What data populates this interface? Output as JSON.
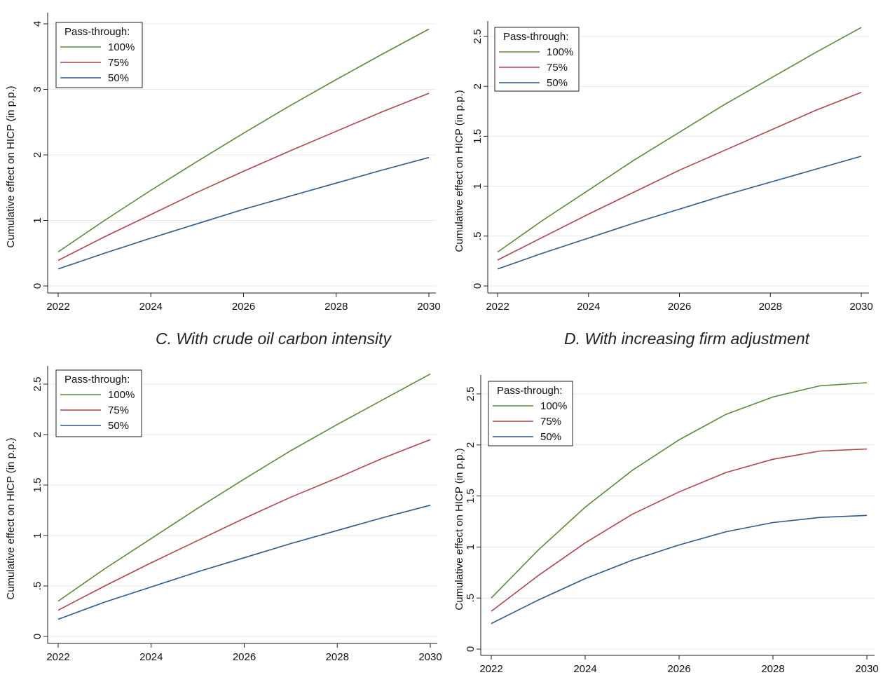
{
  "chart_data": [
    {
      "type": "line",
      "title": "",
      "xlabel": "",
      "ylabel": "Cumulative effect on HICP (in p.p.)",
      "xlim": [
        2022,
        2030
      ],
      "ylim": [
        0,
        4
      ],
      "xticks": [
        2022,
        2024,
        2026,
        2028,
        2030
      ],
      "xtick_labels": [
        "2022",
        "2024",
        "2026",
        "2028",
        "2030"
      ],
      "yticks": [
        0,
        1,
        2,
        3,
        4
      ],
      "ytick_labels": [
        "0",
        "1",
        "2",
        "3",
        "4"
      ],
      "grid": true,
      "legend_title": "Pass-through:",
      "legend_position": "top-left",
      "x": [
        2022,
        2023,
        2024,
        2025,
        2026,
        2027,
        2028,
        2029,
        2030
      ],
      "series": [
        {
          "name": "100%",
          "color": "#5b8a3c",
          "values": [
            0.52,
            1.0,
            1.46,
            1.9,
            2.33,
            2.75,
            3.15,
            3.54,
            3.92
          ]
        },
        {
          "name": "75%",
          "color": "#b0454e",
          "values": [
            0.39,
            0.75,
            1.09,
            1.43,
            1.75,
            2.06,
            2.36,
            2.66,
            2.94
          ]
        },
        {
          "name": "50%",
          "color": "#2c5a8a",
          "values": [
            0.26,
            0.5,
            0.73,
            0.95,
            1.17,
            1.37,
            1.57,
            1.77,
            1.96
          ]
        }
      ]
    },
    {
      "type": "line",
      "title": "",
      "xlabel": "",
      "ylabel": "Cumulative effect on HICP (in p.p.)",
      "xlim": [
        2022,
        2030
      ],
      "ylim": [
        0,
        2.5
      ],
      "xticks": [
        2022,
        2024,
        2026,
        2028,
        2030
      ],
      "xtick_labels": [
        "2022",
        "2024",
        "2026",
        "2028",
        "2030"
      ],
      "yticks": [
        0,
        0.5,
        1,
        1.5,
        2,
        2.5
      ],
      "ytick_labels": [
        "0",
        ".5",
        "1",
        "1.5",
        "2",
        "2.5"
      ],
      "grid": true,
      "legend_title": "Pass-through:",
      "legend_position": "top-left",
      "x": [
        2022,
        2023,
        2024,
        2025,
        2026,
        2027,
        2028,
        2029,
        2030
      ],
      "series": [
        {
          "name": "100%",
          "color": "#5b8a3c",
          "values": [
            0.34,
            0.66,
            0.96,
            1.26,
            1.54,
            1.82,
            2.08,
            2.34,
            2.59
          ]
        },
        {
          "name": "75%",
          "color": "#b0454e",
          "values": [
            0.26,
            0.49,
            0.72,
            0.94,
            1.16,
            1.36,
            1.56,
            1.76,
            1.94
          ]
        },
        {
          "name": "50%",
          "color": "#2c5a8a",
          "values": [
            0.17,
            0.33,
            0.48,
            0.63,
            0.77,
            0.91,
            1.04,
            1.17,
            1.3
          ]
        }
      ]
    },
    {
      "type": "line",
      "title": "C. With crude oil carbon intensity",
      "xlabel": "",
      "ylabel": "Cumulative effect on HICP (in p.p.)",
      "xlim": [
        2022,
        2030
      ],
      "ylim": [
        0,
        2.5
      ],
      "xticks": [
        2022,
        2024,
        2026,
        2028,
        2030
      ],
      "xtick_labels": [
        "2022",
        "2024",
        "2026",
        "2028",
        "2030"
      ],
      "yticks": [
        0,
        0.5,
        1,
        1.5,
        2,
        2.5
      ],
      "ytick_labels": [
        "0",
        ".5",
        "1",
        "1.5",
        "2",
        "2.5"
      ],
      "grid": true,
      "legend_title": "Pass-through:",
      "legend_position": "top-left",
      "x": [
        2022,
        2023,
        2024,
        2025,
        2026,
        2027,
        2028,
        2029,
        2030
      ],
      "series": [
        {
          "name": "100%",
          "color": "#5b8a3c",
          "values": [
            0.35,
            0.67,
            0.97,
            1.27,
            1.56,
            1.84,
            2.1,
            2.35,
            2.6
          ]
        },
        {
          "name": "75%",
          "color": "#b0454e",
          "values": [
            0.26,
            0.5,
            0.73,
            0.95,
            1.17,
            1.38,
            1.57,
            1.77,
            1.95
          ]
        },
        {
          "name": "50%",
          "color": "#2c5a8a",
          "values": [
            0.17,
            0.34,
            0.49,
            0.64,
            0.78,
            0.92,
            1.05,
            1.18,
            1.3
          ]
        }
      ]
    },
    {
      "type": "line",
      "title": "D. With increasing firm adjustment",
      "xlabel": "",
      "ylabel": "Cumulative effect on HICP (in p.p.)",
      "xlim": [
        2022,
        2030
      ],
      "ylim": [
        0,
        2.5
      ],
      "xticks": [
        2022,
        2024,
        2026,
        2028,
        2030
      ],
      "xtick_labels": [
        "2022",
        "2024",
        "2026",
        "2028",
        "2030"
      ],
      "yticks": [
        0,
        0.5,
        1,
        1.5,
        2,
        2.5
      ],
      "ytick_labels": [
        "0",
        ".5",
        "1",
        "1.5",
        "2",
        "2.5"
      ],
      "grid": true,
      "legend_title": "Pass-through:",
      "legend_position": "top-left",
      "x": [
        2022,
        2023,
        2024,
        2025,
        2026,
        2027,
        2028,
        2029,
        2030
      ],
      "series": [
        {
          "name": "100%",
          "color": "#5b8a3c",
          "values": [
            0.5,
            0.97,
            1.39,
            1.75,
            2.05,
            2.3,
            2.47,
            2.58,
            2.61
          ]
        },
        {
          "name": "75%",
          "color": "#b0454e",
          "values": [
            0.37,
            0.72,
            1.04,
            1.32,
            1.54,
            1.73,
            1.86,
            1.94,
            1.96
          ]
        },
        {
          "name": "50%",
          "color": "#2c5a8a",
          "values": [
            0.25,
            0.48,
            0.69,
            0.87,
            1.02,
            1.15,
            1.24,
            1.29,
            1.31
          ]
        }
      ]
    }
  ]
}
